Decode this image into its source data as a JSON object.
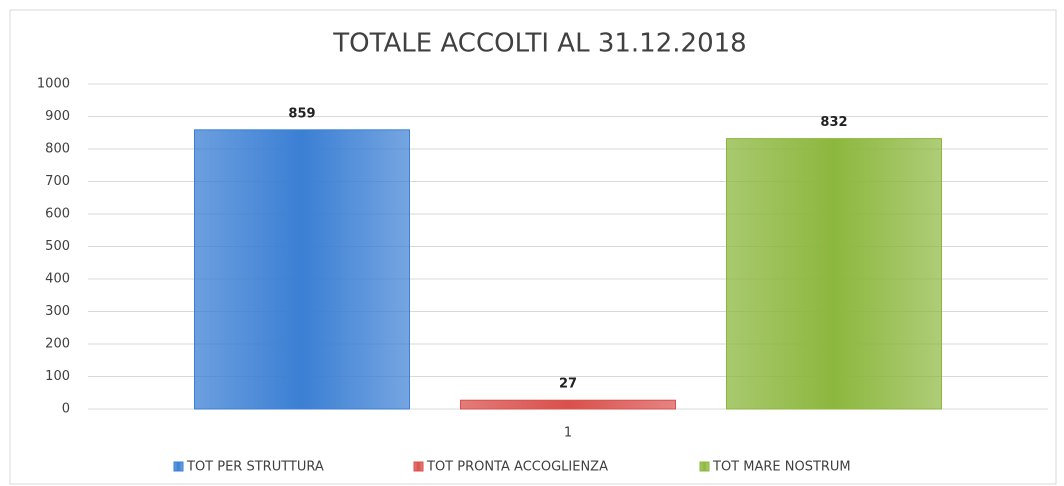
{
  "chart_data": {
    "type": "bar",
    "title": "TOTALE ACCOLTI AL 31.12.2018",
    "categories": [
      "1"
    ],
    "series": [
      {
        "name": "TOT PER STRUTTURA",
        "color": "#3b7fd4",
        "values": [
          859
        ]
      },
      {
        "name": "TOT PRONTA ACCOGLIENZA",
        "color": "#d9504c",
        "values": [
          27
        ]
      },
      {
        "name": "TOT MARE NOSTRUM",
        "color": "#8cb73e",
        "values": [
          832
        ]
      }
    ],
    "ylim": [
      0,
      1000
    ],
    "yticks": [
      0,
      100,
      200,
      300,
      400,
      500,
      600,
      700,
      800,
      900,
      1000
    ],
    "grid": true,
    "legend": "bottom"
  }
}
